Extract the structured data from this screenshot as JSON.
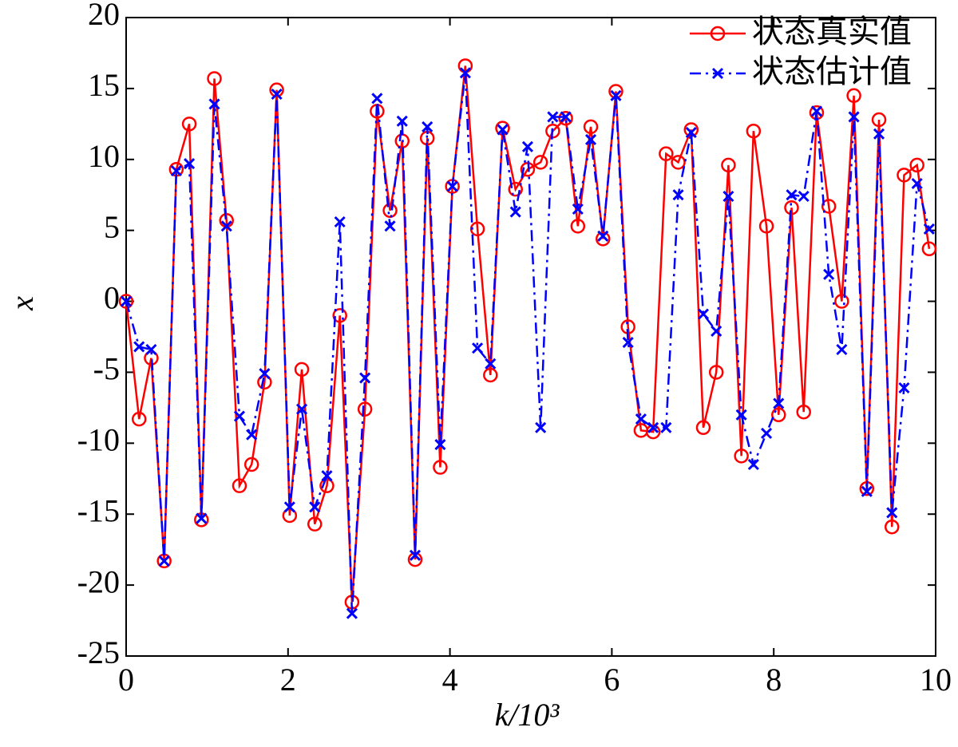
{
  "chart_data": {
    "type": "line",
    "xlabel": "k/10³",
    "ylabel": "x",
    "x": [
      0,
      0.16,
      0.31,
      0.47,
      0.62,
      0.78,
      0.93,
      1.09,
      1.24,
      1.4,
      1.55,
      1.71,
      1.86,
      2.02,
      2.17,
      2.33,
      2.48,
      2.64,
      2.79,
      2.95,
      3.1,
      3.26,
      3.41,
      3.57,
      3.72,
      3.88,
      4.03,
      4.19,
      4.34,
      4.5,
      4.65,
      4.81,
      4.96,
      5.12,
      5.27,
      5.43,
      5.58,
      5.74,
      5.89,
      6.05,
      6.2,
      6.36,
      6.51,
      6.67,
      6.82,
      6.98,
      7.13,
      7.29,
      7.44,
      7.6,
      7.75,
      7.91,
      8.06,
      8.22,
      8.37,
      8.53,
      8.68,
      8.84,
      8.99,
      9.15,
      9.3,
      9.46,
      9.61,
      9.77,
      9.92
    ],
    "series": [
      {
        "name": "状态真实值",
        "color": "#ff0000",
        "linestyle": "solid",
        "marker": "circle",
        "values": [
          0,
          -8.3,
          -4,
          -18.3,
          9.3,
          12.5,
          -15.4,
          15.7,
          5.7,
          -13,
          -11.5,
          -5.7,
          14.9,
          -15.1,
          -4.8,
          -15.7,
          -13,
          -1,
          -21.2,
          -7.6,
          13.4,
          6.4,
          11.3,
          -18.2,
          11.5,
          -11.7,
          8.1,
          16.6,
          5.1,
          -5.2,
          12.2,
          7.9,
          9.3,
          9.8,
          12,
          12.9,
          5.3,
          12.3,
          4.4,
          14.8,
          -1.8,
          -9.1,
          -9.2,
          10.4,
          9.8,
          12.1,
          -8.9,
          -5,
          9.6,
          -10.9,
          12,
          5.3,
          -8,
          6.6,
          -7.8,
          13.3,
          6.7,
          0,
          14.5,
          -13.2,
          12.8,
          -15.9,
          8.9,
          9.6,
          3.7
        ]
      },
      {
        "name": "状态估计值",
        "color": "#0000ff",
        "linestyle": "dashdot",
        "marker": "x",
        "values": [
          0,
          -3.2,
          -3.4,
          -18.3,
          9.2,
          9.7,
          -15.3,
          13.9,
          5.3,
          -8.1,
          -9.4,
          -5.1,
          14.6,
          -14.5,
          -7.6,
          -14.5,
          -12.3,
          5.6,
          -22,
          -5.4,
          14.3,
          5.3,
          12.7,
          -17.9,
          12.3,
          -10.1,
          8.1,
          16.1,
          -3.3,
          -4.4,
          12.1,
          6.3,
          10.9,
          -8.9,
          13,
          13,
          6.5,
          11.4,
          4.6,
          14.5,
          -2.9,
          -8.3,
          -8.9,
          -8.9,
          7.5,
          11.9,
          -0.9,
          -2.1,
          7.4,
          -8,
          -11.5,
          -9.3,
          -7.2,
          7.5,
          7.4,
          13.4,
          1.9,
          -3.4,
          13,
          -13.4,
          11.8,
          -14.9,
          -6.1,
          8.3,
          5.1
        ]
      }
    ],
    "xlim": [
      0,
      10
    ],
    "xticks": [
      0,
      2,
      4,
      6,
      8,
      10
    ],
    "ylim": [
      -25,
      20
    ],
    "yticks": [
      -25,
      -20,
      -15,
      -10,
      -5,
      0,
      5,
      10,
      15,
      20
    ],
    "grid": false,
    "legend": "upper right"
  }
}
